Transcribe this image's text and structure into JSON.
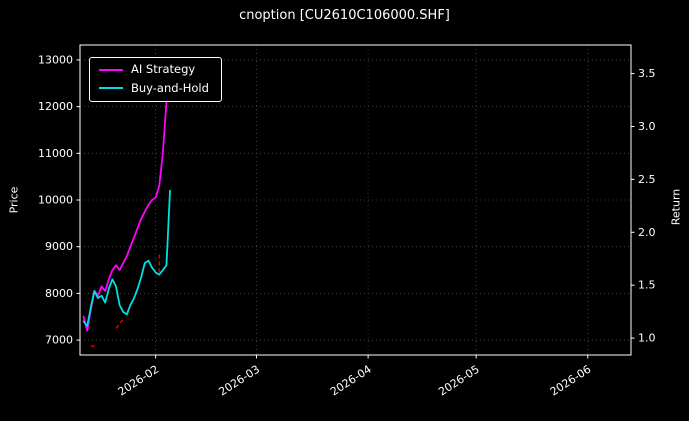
{
  "chart_data": {
    "type": "line",
    "title": "cnoption [CU2610C106000.SHF]",
    "ylabel_left": "Price",
    "ylabel_right": "Return",
    "grid": true,
    "legend_position": "upper-left",
    "x_range": [
      "2026-01-11",
      "2026-06-13"
    ],
    "y_left_range": [
      6680,
      13320
    ],
    "y_right_range": [
      0.84,
      3.77
    ],
    "x_ticks": [
      {
        "label": "2026-02",
        "date": "2026-02-01"
      },
      {
        "label": "2026-03",
        "date": "2026-03-01"
      },
      {
        "label": "2026-04",
        "date": "2026-04-01"
      },
      {
        "label": "2026-05",
        "date": "2026-05-01"
      },
      {
        "label": "2026-06",
        "date": "2026-06-01"
      }
    ],
    "y_ticks_left": [
      {
        "label": "7000",
        "value": 7000
      },
      {
        "label": "8000",
        "value": 8000
      },
      {
        "label": "9000",
        "value": 9000
      },
      {
        "label": "10000",
        "value": 10000
      },
      {
        "label": "11000",
        "value": 11000
      },
      {
        "label": "12000",
        "value": 12000
      },
      {
        "label": "13000",
        "value": 13000
      }
    ],
    "y_ticks_right": [
      {
        "label": "1.0",
        "value": 1.0
      },
      {
        "label": "1.5",
        "value": 1.5
      },
      {
        "label": "2.0",
        "value": 2.0
      },
      {
        "label": "2.5",
        "value": 2.5
      },
      {
        "label": "3.0",
        "value": 3.0
      },
      {
        "label": "3.5",
        "value": 3.5
      }
    ],
    "series": [
      {
        "name": "AI Strategy",
        "color": "#ff00ff",
        "axis": "left",
        "points": [
          [
            "2026-01-12",
            7500
          ],
          [
            "2026-01-13",
            7200
          ],
          [
            "2026-01-14",
            7650
          ],
          [
            "2026-01-15",
            8050
          ],
          [
            "2026-01-16",
            7950
          ],
          [
            "2026-01-17",
            8150
          ],
          [
            "2026-01-18",
            8050
          ],
          [
            "2026-01-19",
            8300
          ],
          [
            "2026-01-20",
            8500
          ],
          [
            "2026-01-21",
            8600
          ],
          [
            "2026-01-22",
            8500
          ],
          [
            "2026-01-23",
            8650
          ],
          [
            "2026-01-24",
            8800
          ],
          [
            "2026-01-25",
            9000
          ],
          [
            "2026-01-26",
            9200
          ],
          [
            "2026-01-27",
            9400
          ],
          [
            "2026-01-28",
            9600
          ],
          [
            "2026-01-29",
            9750
          ],
          [
            "2026-01-30",
            9900
          ],
          [
            "2026-01-31",
            10000
          ],
          [
            "2026-02-01",
            10050
          ],
          [
            "2026-02-02",
            10300
          ],
          [
            "2026-02-03",
            11000
          ],
          [
            "2026-02-04",
            12100
          ],
          [
            "2026-02-05",
            12900
          ]
        ]
      },
      {
        "name": "Buy-and-Hold",
        "color": "#00e0e0",
        "axis": "left",
        "points": [
          [
            "2026-01-12",
            7400
          ],
          [
            "2026-01-13",
            7300
          ],
          [
            "2026-01-14",
            7700
          ],
          [
            "2026-01-15",
            8050
          ],
          [
            "2026-01-16",
            7900
          ],
          [
            "2026-01-17",
            7950
          ],
          [
            "2026-01-18",
            7800
          ],
          [
            "2026-01-19",
            8100
          ],
          [
            "2026-01-20",
            8300
          ],
          [
            "2026-01-21",
            8150
          ],
          [
            "2026-01-22",
            7750
          ],
          [
            "2026-01-23",
            7600
          ],
          [
            "2026-01-24",
            7550
          ],
          [
            "2026-01-25",
            7750
          ],
          [
            "2026-01-26",
            7900
          ],
          [
            "2026-01-27",
            8100
          ],
          [
            "2026-01-28",
            8350
          ],
          [
            "2026-01-29",
            8650
          ],
          [
            "2026-01-30",
            8700
          ],
          [
            "2026-01-31",
            8550
          ],
          [
            "2026-02-01",
            8450
          ],
          [
            "2026-02-02",
            8400
          ],
          [
            "2026-02-03",
            8500
          ],
          [
            "2026-02-04",
            8600
          ],
          [
            "2026-02-05",
            10200
          ]
        ]
      }
    ],
    "signals": {
      "name": "trade-signal-marks",
      "color": "#ff0000",
      "style": "dashed",
      "segments": [
        [
          [
            "2026-01-14",
            6870
          ],
          [
            "2026-01-16",
            6870
          ]
        ],
        [
          [
            "2026-01-21",
            7250
          ],
          [
            "2026-01-23",
            7450
          ]
        ],
        [
          [
            "2026-02-02",
            8450
          ],
          [
            "2026-02-02",
            8850
          ]
        ]
      ]
    },
    "colors": {
      "background": "#000000",
      "text": "#ffffff",
      "grid": "#4d4d4d",
      "spine": "#ffffff"
    }
  }
}
